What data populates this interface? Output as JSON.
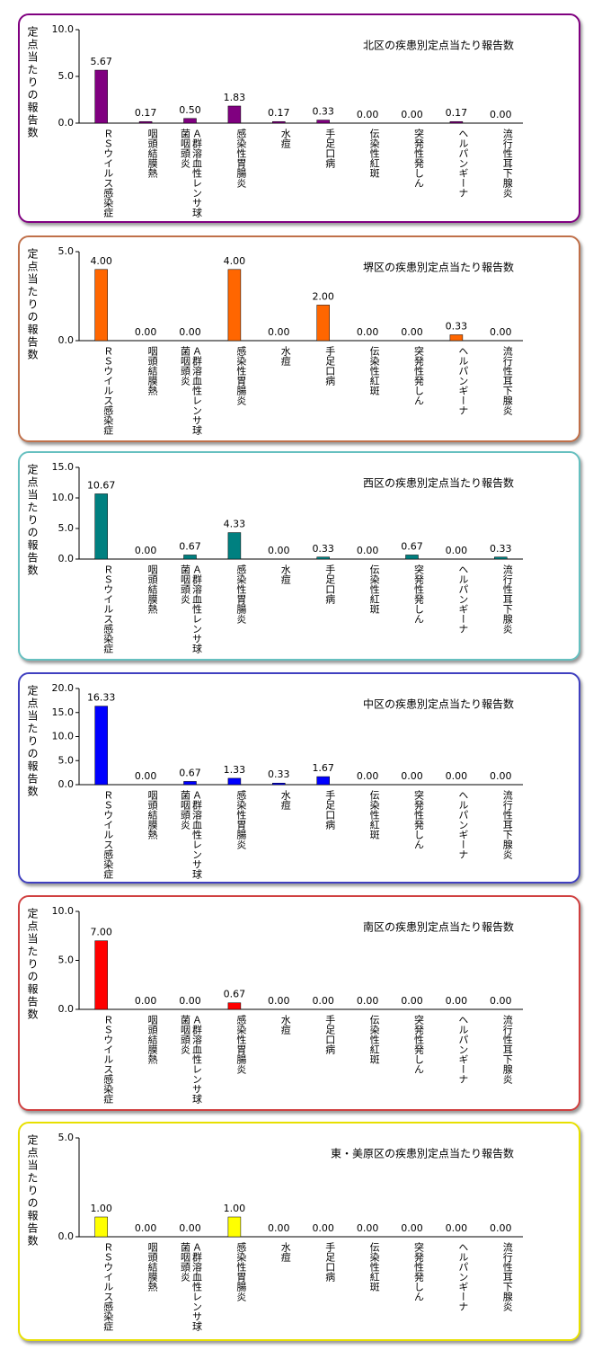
{
  "chart_data": [
    {
      "type": "bar",
      "title": "北区の疾患別定点当たり報告数",
      "ylabel": "定点当たりの報告数",
      "categories": [
        "ＲＳウイルス感染症",
        "咽頭結膜熱",
        "Ａ群溶血性レンサ球菌咽頭炎",
        "感染性胃腸炎",
        "水痘",
        "手足口病",
        "伝染性紅斑",
        "突発性発しん",
        "ヘルパンギーナ",
        "流行性耳下腺炎"
      ],
      "values": [
        5.67,
        0.17,
        0.5,
        1.83,
        0.17,
        0.33,
        0,
        0,
        0.17,
        0
      ],
      "value_labels": [
        "5.67",
        "0.17",
        "0.50",
        "1.83",
        "0.17",
        "0.33",
        "0.00",
        "0.00",
        "0.17",
        "0.00"
      ],
      "color": "#800080",
      "ylim": [
        0,
        10
      ],
      "yticks": [
        {
          "value": 0,
          "label": "0.0"
        },
        {
          "value": 5,
          "label": "5.0"
        },
        {
          "value": 10,
          "label": "10.0"
        }
      ]
    },
    {
      "type": "bar",
      "title": "堺区の疾患別定点当たり報告数",
      "ylabel": "定点当たりの報告数",
      "categories": [
        "ＲＳウイルス感染症",
        "咽頭結膜熱",
        "Ａ群溶血性レンサ球菌咽頭炎",
        "感染性胃腸炎",
        "水痘",
        "手足口病",
        "伝染性紅斑",
        "突発性発しん",
        "ヘルパンギーナ",
        "流行性耳下腺炎"
      ],
      "values": [
        4,
        0,
        0,
        4,
        0,
        2,
        0,
        0,
        0.33,
        0
      ],
      "value_labels": [
        "4.00",
        "0.00",
        "0.00",
        "4.00",
        "0.00",
        "2.00",
        "0.00",
        "0.00",
        "0.33",
        "0.00"
      ],
      "color": "#ff6600",
      "ylim": [
        0,
        5
      ],
      "yticks": [
        {
          "value": 0,
          "label": "0.0"
        },
        {
          "value": 5,
          "label": "5.0"
        }
      ]
    },
    {
      "type": "bar",
      "title": "西区の疾患別定点当たり報告数",
      "ylabel": "定点当たりの報告数",
      "categories": [
        "ＲＳウイルス感染症",
        "咽頭結膜熱",
        "Ａ群溶血性レンサ球菌咽頭炎",
        "感染性胃腸炎",
        "水痘",
        "手足口病",
        "伝染性紅斑",
        "突発性発しん",
        "ヘルパンギーナ",
        "流行性耳下腺炎"
      ],
      "values": [
        10.67,
        0,
        0.67,
        4.33,
        0,
        0.33,
        0,
        0.67,
        0,
        0.33
      ],
      "value_labels": [
        "10.67",
        "0.00",
        "0.67",
        "4.33",
        "0.00",
        "0.33",
        "0.00",
        "0.67",
        "0.00",
        "0.33"
      ],
      "color": "#008080",
      "ylim": [
        0,
        15
      ],
      "yticks": [
        {
          "value": 0,
          "label": "0.0"
        },
        {
          "value": 5,
          "label": "5.0"
        },
        {
          "value": 10,
          "label": "10.0"
        },
        {
          "value": 15,
          "label": "15.0"
        }
      ]
    },
    {
      "type": "bar",
      "title": "中区の疾患別定点当たり報告数",
      "ylabel": "定点当たりの報告数",
      "categories": [
        "ＲＳウイルス感染症",
        "咽頭結膜熱",
        "Ａ群溶血性レンサ球菌咽頭炎",
        "感染性胃腸炎",
        "水痘",
        "手足口病",
        "伝染性紅斑",
        "突発性発しん",
        "ヘルパンギーナ",
        "流行性耳下腺炎"
      ],
      "values": [
        16.33,
        0,
        0.67,
        1.33,
        0.33,
        1.67,
        0,
        0,
        0,
        0
      ],
      "value_labels": [
        "16.33",
        "0.00",
        "0.67",
        "1.33",
        "0.33",
        "1.67",
        "0.00",
        "0.00",
        "0.00",
        "0.00"
      ],
      "color": "#0000ff",
      "ylim": [
        0,
        20
      ],
      "yticks": [
        {
          "value": 0,
          "label": "0.0"
        },
        {
          "value": 5,
          "label": "5.0"
        },
        {
          "value": 10,
          "label": "10.0"
        },
        {
          "value": 15,
          "label": "15.0"
        },
        {
          "value": 20,
          "label": "20.0"
        }
      ]
    },
    {
      "type": "bar",
      "title": "南区の疾患別定点当たり報告数",
      "ylabel": "定点当たりの報告数",
      "categories": [
        "ＲＳウイルス感染症",
        "咽頭結膜熱",
        "Ａ群溶血性レンサ球菌咽頭炎",
        "感染性胃腸炎",
        "水痘",
        "手足口病",
        "伝染性紅斑",
        "突発性発しん",
        "ヘルパンギーナ",
        "流行性耳下腺炎"
      ],
      "values": [
        7,
        0,
        0,
        0.67,
        0,
        0,
        0,
        0,
        0,
        0
      ],
      "value_labels": [
        "7.00",
        "0.00",
        "0.00",
        "0.67",
        "0.00",
        "0.00",
        "0.00",
        "0.00",
        "0.00",
        "0.00"
      ],
      "color": "#ff0000",
      "ylim": [
        0,
        10
      ],
      "yticks": [
        {
          "value": 0,
          "label": "0.0"
        },
        {
          "value": 5,
          "label": "5.0"
        },
        {
          "value": 10,
          "label": "10.0"
        }
      ]
    },
    {
      "type": "bar",
      "title": "東・美原区の疾患別定点当たり報告数",
      "ylabel": "定点当たりの報告数",
      "categories": [
        "ＲＳウイルス感染症",
        "咽頭結膜熱",
        "Ａ群溶血性レンサ球菌咽頭炎",
        "感染性胃腸炎",
        "水痘",
        "手足口病",
        "伝染性紅斑",
        "突発性発しん",
        "ヘルパンギーナ",
        "流行性耳下腺炎"
      ],
      "values": [
        1,
        0,
        0,
        1,
        0,
        0,
        0,
        0,
        0,
        0
      ],
      "value_labels": [
        "1.00",
        "0.00",
        "0.00",
        "1.00",
        "0.00",
        "0.00",
        "0.00",
        "0.00",
        "0.00",
        "0.00"
      ],
      "color": "#ffff00",
      "ylim": [
        0,
        5
      ],
      "yticks": [
        {
          "value": 0,
          "label": "0.0"
        },
        {
          "value": 5,
          "label": "5.0"
        }
      ]
    }
  ]
}
